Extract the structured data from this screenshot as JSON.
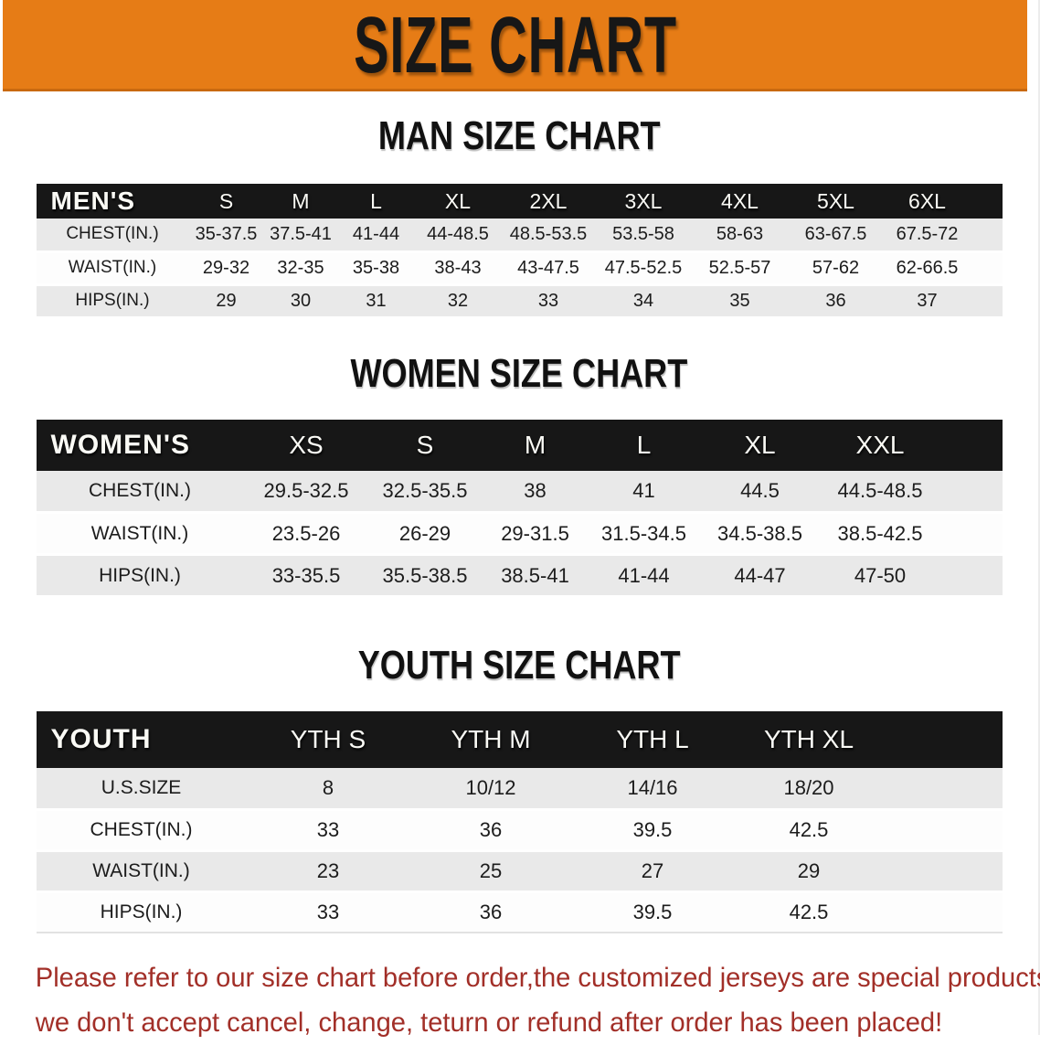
{
  "banner": {
    "title": "SIZE CHART"
  },
  "sections": [
    {
      "heading": "MAN SIZE CHART",
      "label": "MEN'S",
      "columns": [
        "S",
        "M",
        "L",
        "XL",
        "2XL",
        "3XL",
        "4XL",
        "5XL",
        "6XL"
      ],
      "rows": [
        {
          "label": "CHEST(IN.)",
          "values": [
            "35-37.5",
            "37.5-41",
            "41-44",
            "44-48.5",
            "48.5-53.5",
            "53.5-58",
            "58-63",
            "63-67.5",
            "67.5-72"
          ]
        },
        {
          "label": "WAIST(IN.)",
          "values": [
            "29-32",
            "32-35",
            "35-38",
            "38-43",
            "43-47.5",
            "47.5-52.5",
            "52.5-57",
            "57-62",
            "62-66.5"
          ]
        },
        {
          "label": "HIPS(IN.)",
          "values": [
            "29",
            "30",
            "31",
            "32",
            "33",
            "34",
            "35",
            "36",
            "37"
          ]
        }
      ]
    },
    {
      "heading": "WOMEN SIZE CHART",
      "label": "WOMEN'S",
      "columns": [
        "XS",
        "S",
        "M",
        "L",
        "XL",
        "XXL"
      ],
      "rows": [
        {
          "label": "CHEST(IN.)",
          "values": [
            "29.5-32.5",
            "32.5-35.5",
            "38",
            "41",
            "44.5",
            "44.5-48.5"
          ]
        },
        {
          "label": "WAIST(IN.)",
          "values": [
            "23.5-26",
            "26-29",
            "29-31.5",
            "31.5-34.5",
            "34.5-38.5",
            "38.5-42.5"
          ]
        },
        {
          "label": "HIPS(IN.)",
          "values": [
            "33-35.5",
            "35.5-38.5",
            "38.5-41",
            "41-44",
            "44-47",
            "47-50"
          ]
        }
      ]
    },
    {
      "heading": "YOUTH SIZE CHART",
      "label": "YOUTH",
      "columns": [
        "YTH S",
        "YTH M",
        "YTH L",
        "YTH XL"
      ],
      "rows": [
        {
          "label": "U.S.SIZE",
          "values": [
            "8",
            "10/12",
            "14/16",
            "18/20"
          ]
        },
        {
          "label": "CHEST(IN.)",
          "values": [
            "33",
            "36",
            "39.5",
            "42.5"
          ]
        },
        {
          "label": "WAIST(IN.)",
          "values": [
            "23",
            "25",
            "27",
            "29"
          ]
        },
        {
          "label": "HIPS(IN.)",
          "values": [
            "33",
            "36",
            "39.5",
            "42.5"
          ]
        }
      ]
    }
  ],
  "footer": {
    "line1": "Please refer to our size chart before order,the customized jerseys are special products,",
    "line2": "we don't accept cancel, change, teturn or refund after order has been placed!"
  },
  "colors": {
    "banner_bg": "#e67c16",
    "banner_fg": "#171717",
    "header_bar_bg": "#171717",
    "row_gray": "#e9e9e9",
    "note_red": "#a22f28"
  }
}
